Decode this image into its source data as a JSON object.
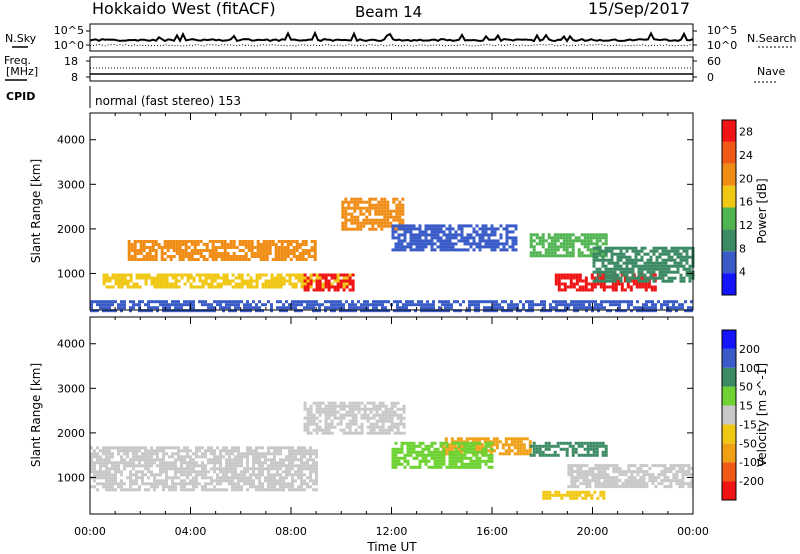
{
  "header": {
    "station": "Hokkaido West (fitACF)",
    "beam": "Beam 14",
    "date": "15/Sep/2017"
  },
  "noise_panel": {
    "left_label": "N.Sky",
    "right_label": "N.Search",
    "left_ticks": [
      "10^5",
      "10^0"
    ],
    "right_ticks": [
      "10^5",
      "10^0"
    ]
  },
  "freq_panel": {
    "left_label_1": "Freq.",
    "left_label_2": "[MHz]",
    "right_label": "Nave",
    "left_ticks": [
      "18",
      "8"
    ],
    "right_ticks": [
      "60",
      "0"
    ]
  },
  "cpid": {
    "label": "CPID",
    "text": "normal (fast stereo) 153"
  },
  "colors": {
    "power": [
      "#1414ff",
      "#3a5cc8",
      "#3c8a64",
      "#50b450",
      "#f0c814",
      "#f08c14",
      "#f05a14",
      "#f01414"
    ],
    "velocity": [
      "#f01414",
      "#f05a14",
      "#f0a014",
      "#f0c814",
      "#c8c8c8",
      "#6ed232",
      "#3c8a64",
      "#3a5cc8",
      "#1414ff"
    ]
  },
  "chart_data": [
    {
      "type": "heatmap",
      "xlabel": "Time UT",
      "ylabel": "Slant Range [km]",
      "x_ticks": [
        "00:00",
        "04:00",
        "08:00",
        "12:00",
        "16:00",
        "20:00",
        "00:00"
      ],
      "y_ticks": [
        "1000",
        "2000",
        "3000",
        "4000"
      ],
      "ylim": [
        180,
        4600
      ],
      "xlim_hours": [
        0,
        24
      ],
      "colorbar": {
        "label": "Power [dB]",
        "ticks": [
          "4",
          "8",
          "12",
          "16",
          "20",
          "24",
          "28"
        ],
        "range": [
          0,
          30
        ]
      },
      "regions": [
        {
          "t0": 1.5,
          "t1": 9.0,
          "r0": 1300,
          "r1": 1750,
          "value": 21
        },
        {
          "t0": 0.5,
          "t1": 10.5,
          "r0": 700,
          "r1": 1000,
          "value": 17
        },
        {
          "t0": 8.5,
          "t1": 10.5,
          "r0": 600,
          "r1": 1000,
          "value": 27
        },
        {
          "t0": 10.0,
          "t1": 12.5,
          "r0": 2000,
          "r1": 2700,
          "value": 20
        },
        {
          "t0": 12.0,
          "t1": 17.0,
          "r0": 1500,
          "r1": 2100,
          "value": 7
        },
        {
          "t0": 17.5,
          "t1": 20.5,
          "r0": 1400,
          "r1": 1900,
          "value": 13
        },
        {
          "t0": 18.5,
          "t1": 22.5,
          "r0": 600,
          "r1": 1000,
          "value": 27
        },
        {
          "t0": 20.0,
          "t1": 24.0,
          "r0": 800,
          "r1": 1600,
          "value": 8
        },
        {
          "t0": 0.0,
          "t1": 24.0,
          "r0": 180,
          "r1": 400,
          "value": 6
        }
      ]
    },
    {
      "type": "heatmap",
      "xlabel": "Time UT",
      "ylabel": "Slant Range [km]",
      "x_ticks": [
        "00:00",
        "04:00",
        "08:00",
        "12:00",
        "16:00",
        "20:00",
        "00:00"
      ],
      "y_ticks": [
        "1000",
        "2000",
        "3000",
        "4000"
      ],
      "ylim": [
        180,
        4600
      ],
      "xlim_hours": [
        0,
        24
      ],
      "colorbar": {
        "label": "Velocity [m s^-1]",
        "ticks": [
          "-200",
          "-100",
          "-50",
          "-15",
          "15",
          "50",
          "100",
          "200"
        ]
      },
      "regions": [
        {
          "t0": 0.0,
          "t1": 9.0,
          "r0": 700,
          "r1": 1700,
          "value": 0
        },
        {
          "t0": 8.5,
          "t1": 12.5,
          "r0": 2000,
          "r1": 2700,
          "value": 0
        },
        {
          "t0": 14.0,
          "t1": 17.5,
          "r0": 1500,
          "r1": 1900,
          "value": -60
        },
        {
          "t0": 17.5,
          "t1": 20.5,
          "r0": 1500,
          "r1": 1800,
          "value": 80
        },
        {
          "t0": 18.0,
          "t1": 20.5,
          "r0": 500,
          "r1": 700,
          "value": -40
        },
        {
          "t0": 19.0,
          "t1": 24.0,
          "r0": 800,
          "r1": 1300,
          "value": 0
        },
        {
          "t0": 12.0,
          "t1": 16.0,
          "r0": 1200,
          "r1": 1800,
          "value": 30
        }
      ]
    }
  ]
}
